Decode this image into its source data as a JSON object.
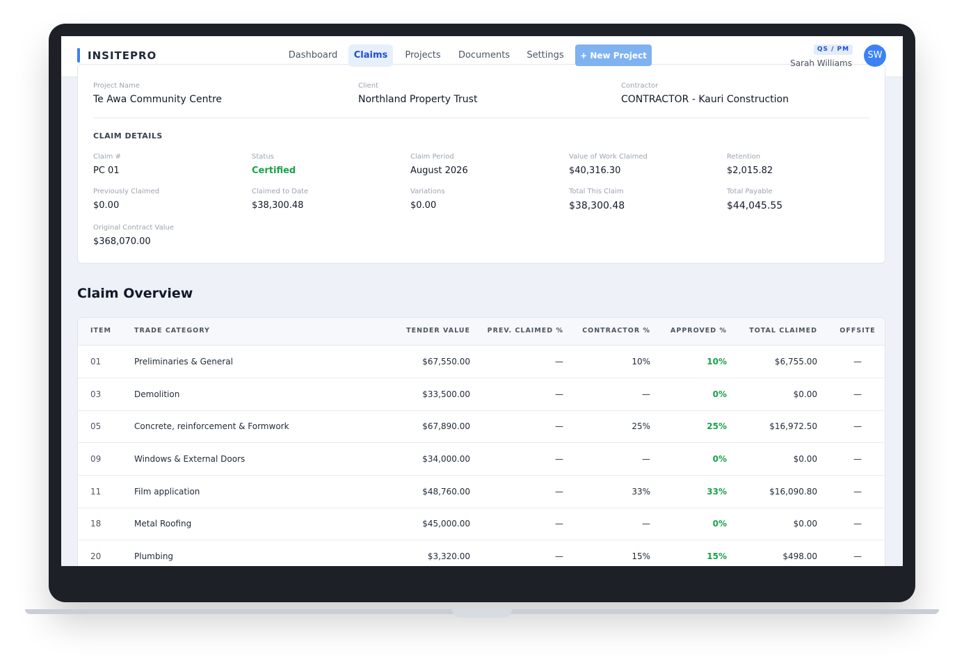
{
  "nav": {
    "brand": "INSITEPRO",
    "items": [
      "Dashboard",
      "Claims",
      "Projects",
      "Documents",
      "Settings"
    ],
    "button": "+ New Project"
  },
  "user": {
    "role": "QS / PM",
    "name": "Sarah Williams",
    "initials": "SW"
  },
  "project": {
    "fields": [
      {
        "label": "Project Name",
        "value": "Te Awa Community Centre"
      },
      {
        "label": "Client",
        "value": "Northland Property Trust"
      },
      {
        "label": "Contractor",
        "value": "CONTRACTOR - Kauri Construction"
      }
    ]
  },
  "claim_details": {
    "title": "CLAIM DETAILS",
    "fields": [
      {
        "label": "Claim #",
        "value": "PC 01"
      },
      {
        "label": "Status",
        "value": "Certified"
      },
      {
        "label": "Claim Period",
        "value": "August 2026"
      },
      {
        "label": "Value of Work Claimed",
        "value": "$40,316.30"
      },
      {
        "label": "Retention",
        "value": "$2,015.82"
      },
      {
        "label": "Previously Claimed",
        "value": "$0.00"
      },
      {
        "label": "Claimed to Date",
        "value": "$38,300.48"
      },
      {
        "label": "Variations",
        "value": "$0.00"
      },
      {
        "label": "Total This Claim",
        "value": "$38,300.48"
      },
      {
        "label": "Total Payable",
        "value": "$44,045.55"
      },
      {
        "label": "Original Contract Value",
        "value": "$368,070.00"
      }
    ]
  },
  "overview": {
    "title": "Claim Overview",
    "columns": [
      "ITEM",
      "TRADE CATEGORY",
      "TENDER VALUE",
      "PREV. CLAIMED %",
      "CONTRACTOR %",
      "APPROVED %",
      "TOTAL CLAIMED",
      "OFFSITE"
    ],
    "rows": [
      [
        "01",
        "Preliminaries & General",
        "$67,550.00",
        "—",
        "10%",
        "10%",
        "$6,755.00",
        "—"
      ],
      [
        "03",
        "Demolition",
        "$33,500.00",
        "—",
        "—",
        "0%",
        "$0.00",
        "—"
      ],
      [
        "05",
        "Concrete, reinforcement & Formwork",
        "$67,890.00",
        "—",
        "25%",
        "25%",
        "$16,972.50",
        "—"
      ],
      [
        "09",
        "Windows & External Doors",
        "$34,000.00",
        "—",
        "—",
        "0%",
        "$0.00",
        "—"
      ],
      [
        "11",
        "Film application",
        "$48,760.00",
        "—",
        "33%",
        "33%",
        "$16,090.80",
        "—"
      ],
      [
        "18",
        "Metal Roofing",
        "$45,000.00",
        "—",
        "—",
        "0%",
        "$0.00",
        "—"
      ],
      [
        "20",
        "Plumbing",
        "$3,320.00",
        "—",
        "15%",
        "15%",
        "$498.00",
        "—"
      ]
    ]
  }
}
